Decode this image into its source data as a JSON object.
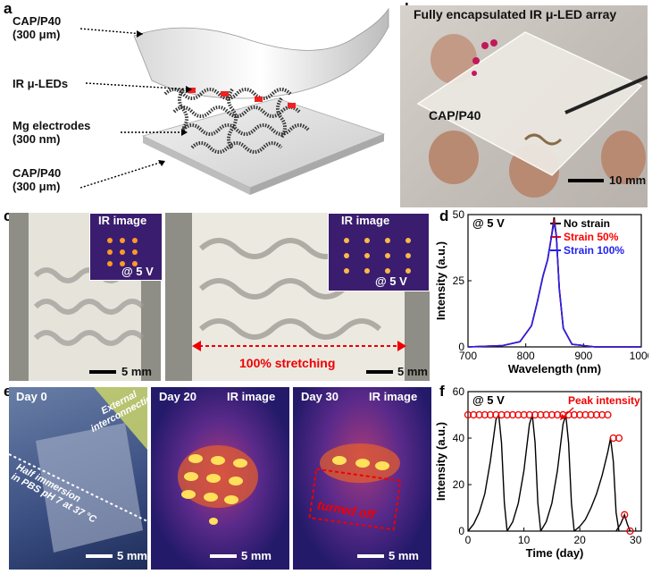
{
  "panels": {
    "a": {
      "letter": "a",
      "labels": [
        "CAP/P40\n(300 μm)",
        "IR μ-LEDs",
        "Mg electrodes\n(300 nm)",
        "CAP/P40\n(300 μm)"
      ]
    },
    "b": {
      "letter": "b",
      "title": "Fully encapsulated IR μ-LED array",
      "label": "CAP/P40",
      "scale": "10 mm"
    },
    "c": {
      "letter": "c",
      "inset_title": "IR image",
      "inset_voltage": "@ 5 V",
      "scale": "5 mm",
      "stretch_label": "100% stretching"
    },
    "d": {
      "letter": "d"
    },
    "e": {
      "letter": "e",
      "day0": "Day 0",
      "external": "External\ninterconnection",
      "immersion": "Half immersion\nin PBS pH 7 at 37 °C",
      "day20": "Day 20",
      "day30": "Day 30",
      "ir": "IR image",
      "turned_off": "turned off",
      "scale": "5 mm"
    },
    "f": {
      "letter": "f"
    }
  },
  "chart_data": [
    {
      "type": "line",
      "panel": "d",
      "annotation": "@ 5 V",
      "xlabel": "Wavelength (nm)",
      "ylabel": "Intensity (a.u.)",
      "xlim": [
        700,
        1000
      ],
      "ylim": [
        0,
        50
      ],
      "xticks": [
        700,
        800,
        900,
        1000
      ],
      "yticks": [
        0,
        25,
        50
      ],
      "legend_position": "top-right",
      "series": [
        {
          "name": "No strain",
          "color": "#000000",
          "x": [
            700,
            760,
            790,
            810,
            820,
            830,
            838,
            844,
            849,
            853,
            858,
            865,
            880,
            920,
            1000
          ],
          "y": [
            0,
            0.5,
            2,
            8,
            17,
            27,
            33,
            41,
            49,
            42,
            22,
            7,
            1,
            0,
            0
          ]
        },
        {
          "name": "Strain 50%",
          "color": "#ff0000",
          "x": [
            700,
            760,
            790,
            810,
            820,
            830,
            838,
            844,
            849,
            853,
            858,
            865,
            880,
            920,
            1000
          ],
          "y": [
            0,
            0.5,
            2,
            8,
            17,
            27,
            33,
            41,
            48,
            42,
            22,
            7,
            1,
            0,
            0
          ]
        },
        {
          "name": "Strain 100%",
          "color": "#2222ee",
          "x": [
            700,
            760,
            790,
            810,
            820,
            830,
            838,
            844,
            849,
            853,
            858,
            865,
            880,
            920,
            1000
          ],
          "y": [
            0,
            0.5,
            2,
            8,
            17,
            27,
            33,
            41,
            47,
            42,
            22,
            7,
            1,
            0,
            0
          ]
        }
      ]
    },
    {
      "type": "line",
      "panel": "f",
      "annotation": "@ 5 V",
      "peak_label": "Peak intensity",
      "xlabel": "Time (day)",
      "ylabel": "Intensity (a.u.)",
      "xlim": [
        0,
        31
      ],
      "ylim": [
        0,
        60
      ],
      "xticks": [
        0,
        10,
        20,
        30
      ],
      "yticks": [
        0,
        20,
        40,
        60
      ],
      "peaks": {
        "x": [
          0,
          1,
          2,
          3,
          4,
          5,
          6,
          7,
          8,
          9,
          10,
          11,
          12,
          13,
          14,
          15,
          16,
          17,
          18,
          19,
          20,
          21,
          22,
          23,
          24,
          25,
          26,
          27,
          28,
          29
        ],
        "y": [
          50,
          50,
          50,
          50,
          50,
          50,
          50,
          50,
          50,
          50,
          50,
          50,
          50,
          50,
          50,
          50,
          50,
          50,
          50,
          50,
          50,
          50,
          50,
          50,
          50,
          50,
          40,
          40,
          7,
          0
        ]
      },
      "cycles": [
        {
          "x": [
            0,
            1,
            2,
            3,
            4,
            5,
            5.5,
            6,
            6.5,
            7
          ],
          "y": [
            0,
            3,
            8,
            16,
            30,
            48,
            50,
            38,
            12,
            0
          ]
        },
        {
          "x": [
            7,
            8,
            9,
            10,
            11,
            11.5,
            12,
            12.5,
            13
          ],
          "y": [
            0,
            4,
            12,
            26,
            46,
            50,
            38,
            12,
            0
          ]
        },
        {
          "x": [
            13,
            14,
            15,
            16,
            17,
            17.5,
            18,
            18.5,
            19
          ],
          "y": [
            0,
            4,
            12,
            26,
            46,
            50,
            38,
            12,
            0
          ]
        },
        {
          "x": [
            19,
            20,
            21,
            22,
            23,
            24,
            25,
            25.5,
            26,
            26.5,
            27
          ],
          "y": [
            0,
            2,
            5,
            10,
            16,
            24,
            34,
            40,
            30,
            8,
            0
          ]
        },
        {
          "x": [
            26.5,
            27.3,
            28,
            28.5,
            29
          ],
          "y": [
            0,
            3,
            7,
            3,
            0
          ]
        }
      ]
    }
  ]
}
